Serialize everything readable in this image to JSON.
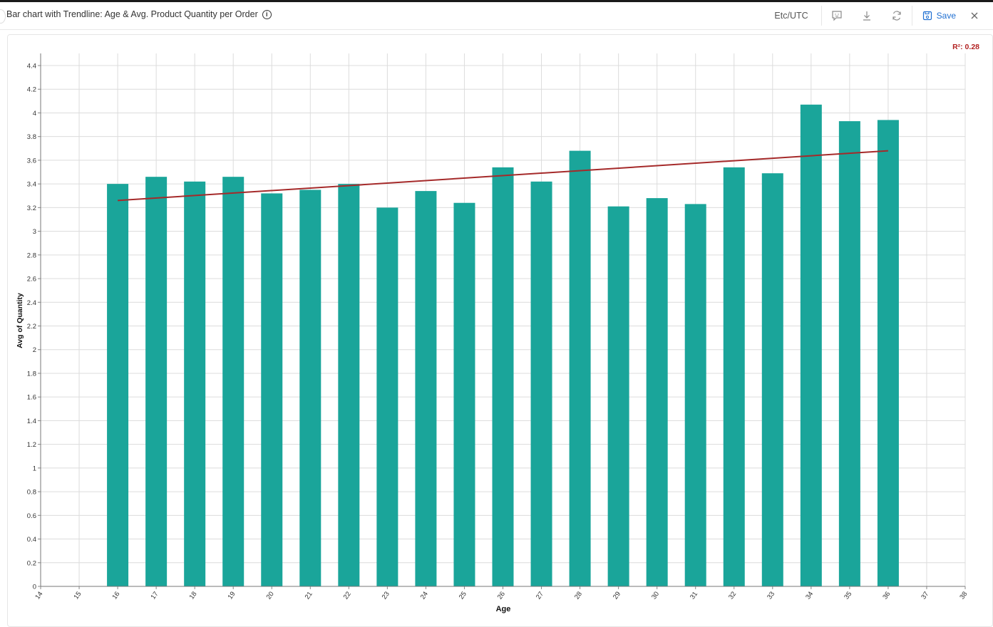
{
  "header": {
    "title": "Bar chart with Trendline: Age & Avg. Product Quantity per Order",
    "timezone": "Etc/UTC",
    "save_label": "Save",
    "icons": [
      "info-icon",
      "comment-icon",
      "download-icon",
      "refresh-icon",
      "save-icon",
      "close-icon"
    ]
  },
  "annotation": {
    "r2_label": "R²: 0.28"
  },
  "colors": {
    "bar": "#1aa59a",
    "trendline": "#a52a2a",
    "r2": "#b22222",
    "save": "#1f6fd1"
  },
  "chart_data": {
    "type": "bar",
    "title": "Bar chart with Trendline: Age & Avg. Product Quantity per Order",
    "xlabel": "Age",
    "ylabel": "Avg of Quantity",
    "xlim": [
      14,
      38
    ],
    "ylim": [
      0,
      4.5
    ],
    "x_ticks": [
      14,
      15,
      16,
      17,
      18,
      19,
      20,
      21,
      22,
      23,
      24,
      25,
      26,
      27,
      28,
      29,
      30,
      31,
      32,
      33,
      34,
      35,
      36,
      37,
      38
    ],
    "y_ticks": [
      "0",
      "0.2",
      "0.4",
      "0.6",
      "0.8",
      "1",
      "1.2",
      "1.4",
      "1.6",
      "1.8",
      "2",
      "2.2",
      "2.4",
      "2.6",
      "2.8",
      "3",
      "3.2",
      "3.4",
      "3.6",
      "3.8",
      "4",
      "4.2",
      "4.4"
    ],
    "grid": true,
    "categories": [
      16,
      17,
      18,
      19,
      20,
      21,
      22,
      23,
      24,
      25,
      26,
      27,
      28,
      29,
      30,
      31,
      32,
      33,
      34,
      35,
      36
    ],
    "values": [
      3.4,
      3.46,
      3.42,
      3.46,
      3.32,
      3.35,
      3.4,
      3.2,
      3.34,
      3.24,
      3.54,
      3.42,
      3.68,
      3.21,
      3.28,
      3.23,
      3.54,
      3.49,
      4.07,
      3.93,
      3.94
    ],
    "trendline": {
      "x": [
        16,
        36
      ],
      "y": [
        3.26,
        3.68
      ],
      "r_squared": 0.28
    }
  }
}
